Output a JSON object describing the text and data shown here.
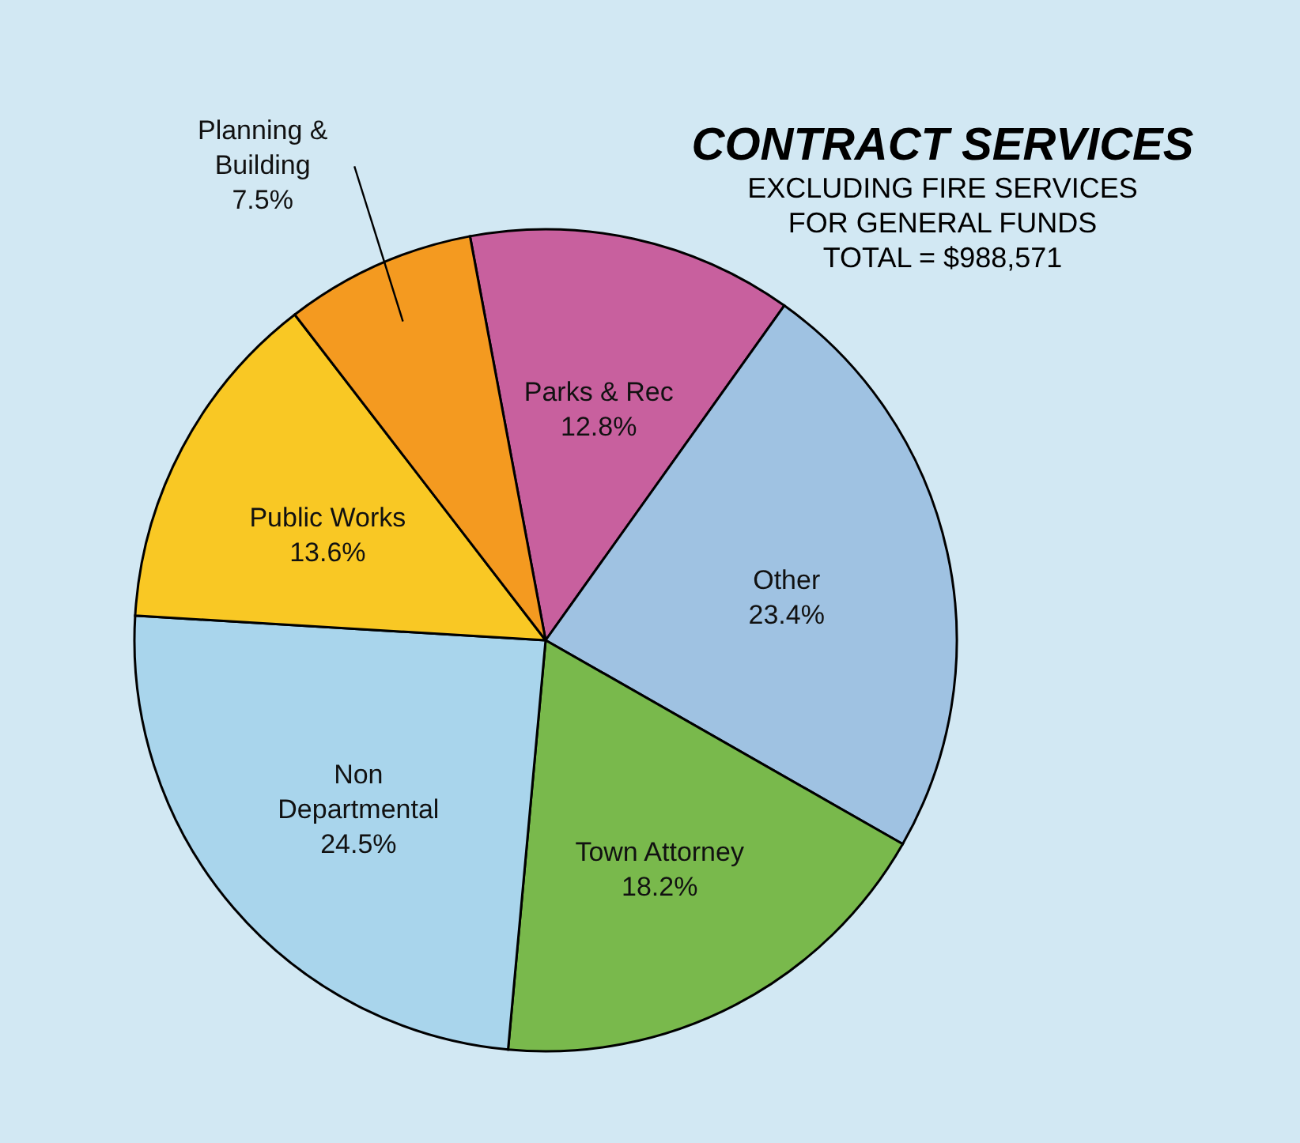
{
  "chart_data": {
    "type": "pie",
    "title": "CONTRACT SERVICES",
    "subtitle": "EXCLUDING FIRE SERVICES\nFOR GENERAL FUNDS",
    "annotations": [
      "TOTAL = $988,571"
    ],
    "categories": [
      "Parks & Rec",
      "Other",
      "Town Attorney",
      "Non Departmental",
      "Public Works",
      "Planning & Building"
    ],
    "values": [
      12.8,
      23.4,
      18.2,
      24.5,
      13.6,
      7.5
    ],
    "value_labels": [
      "12.8%",
      "23.4%",
      "18.2%",
      "24.5%",
      "13.6%",
      "7.5%"
    ],
    "colors": [
      "#c8609e",
      "#9fc2e2",
      "#79b94c",
      "#a9d5ec",
      "#f9c824",
      "#f49a20"
    ]
  }
}
